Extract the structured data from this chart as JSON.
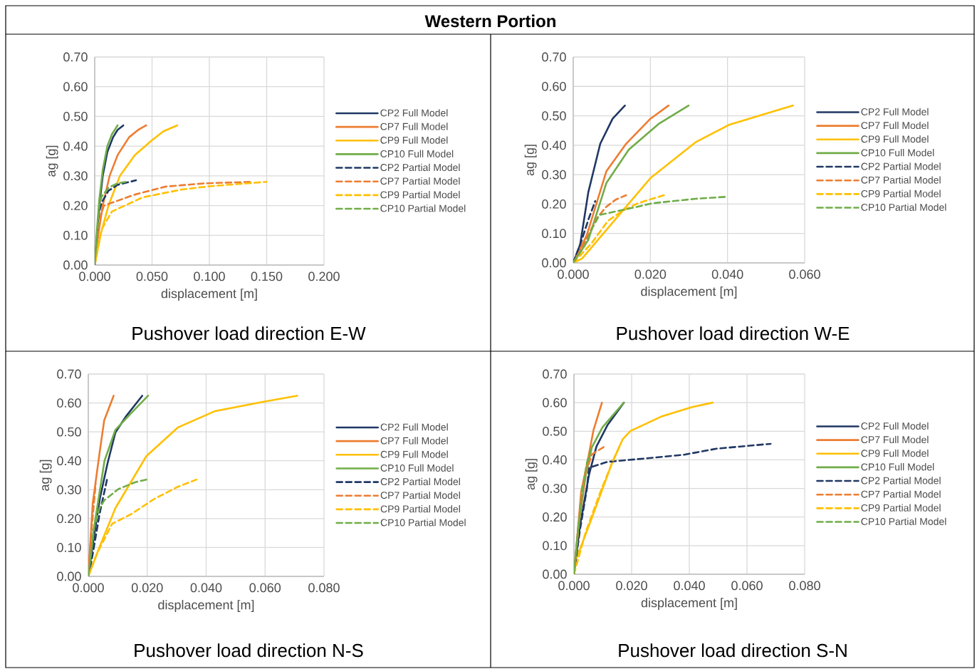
{
  "chart_data": [
    {
      "type": "line",
      "title": "Pushover load direction E-W",
      "xlabel": "displacement [m]",
      "ylabel": "ag [g]",
      "annotations": [
        "Western Portion"
      ],
      "grid": true,
      "legend": "right",
      "xlim": [
        0,
        0.2
      ],
      "ylim": [
        0,
        0.7
      ],
      "xticks": [
        {
          "value": 0,
          "label": "0.000"
        },
        {
          "value": 0.05,
          "label": "0.050"
        },
        {
          "value": 0.1,
          "label": "0.100"
        },
        {
          "value": 0.15,
          "label": "0.150"
        },
        {
          "value": 0.2,
          "label": "0.200"
        }
      ],
      "yticks": [
        {
          "value": 0,
          "label": "0.00"
        },
        {
          "value": 0.1,
          "label": "0.10"
        },
        {
          "value": 0.2,
          "label": "0.20"
        },
        {
          "value": 0.3,
          "label": "0.30"
        },
        {
          "value": 0.4,
          "label": "0.40"
        },
        {
          "value": 0.5,
          "label": "0.50"
        },
        {
          "value": 0.6,
          "label": "0.60"
        },
        {
          "value": 0.7,
          "label": "0.70"
        }
      ],
      "series": [
        {
          "name": "CP2 Full Model",
          "color": "#203864",
          "line_style": "solid",
          "x": [
            0,
            0.002,
            0.004,
            0.007,
            0.011,
            0.016,
            0.02,
            0.025
          ],
          "values": [
            0,
            0.1,
            0.2,
            0.3,
            0.38,
            0.43,
            0.455,
            0.47
          ]
        },
        {
          "name": "CP7 Full Model",
          "color": "#ed7d31",
          "line_style": "solid",
          "x": [
            0,
            0.003,
            0.007,
            0.013,
            0.02,
            0.03,
            0.038,
            0.045
          ],
          "values": [
            0,
            0.1,
            0.2,
            0.3,
            0.37,
            0.43,
            0.455,
            0.47
          ]
        },
        {
          "name": "CP9 Full Model",
          "color": "#ffc000",
          "line_style": "solid",
          "x": [
            0,
            0.005,
            0.012,
            0.022,
            0.035,
            0.05,
            0.06,
            0.072
          ],
          "values": [
            0,
            0.1,
            0.2,
            0.3,
            0.37,
            0.42,
            0.45,
            0.47
          ]
        },
        {
          "name": "CP10 Full Model",
          "color": "#70ad47",
          "line_style": "solid",
          "x": [
            0,
            0.002,
            0.004,
            0.007,
            0.011,
            0.015,
            0.02
          ],
          "values": [
            0,
            0.12,
            0.22,
            0.32,
            0.4,
            0.44,
            0.47
          ]
        },
        {
          "name": "CP2 Partial Model",
          "color": "#203864",
          "line_style": "dashed",
          "x": [
            0,
            0.004,
            0.006,
            0.012,
            0.02,
            0.036
          ],
          "values": [
            0,
            0.18,
            0.21,
            0.25,
            0.27,
            0.285
          ]
        },
        {
          "name": "CP7 Partial Model",
          "color": "#ed7d31",
          "line_style": "dashed",
          "x": [
            0,
            0.004,
            0.008,
            0.035,
            0.062,
            0.096,
            0.137
          ],
          "values": [
            0,
            0.15,
            0.2,
            0.237,
            0.264,
            0.275,
            0.28
          ]
        },
        {
          "name": "CP9 Partial Model",
          "color": "#ffc000",
          "line_style": "dashed",
          "x": [
            0,
            0.006,
            0.015,
            0.042,
            0.076,
            0.1,
            0.15
          ],
          "values": [
            0,
            0.12,
            0.18,
            0.228,
            0.254,
            0.265,
            0.28
          ]
        },
        {
          "name": "CP10 Partial Model",
          "color": "#70ad47",
          "line_style": "dashed",
          "x": [
            0,
            0.004,
            0.006,
            0.012,
            0.02,
            0.027
          ],
          "values": [
            0,
            0.2,
            0.23,
            0.26,
            0.275,
            0.28
          ]
        }
      ]
    },
    {
      "type": "line",
      "title": "Pushover load direction W-E",
      "xlabel": "displacement [m]",
      "ylabel": "ag [g]",
      "grid": true,
      "legend": "right",
      "xlim": [
        0,
        0.06
      ],
      "ylim": [
        0,
        0.7
      ],
      "xticks": [
        {
          "value": 0,
          "label": "0.000"
        },
        {
          "value": 0.02,
          "label": "0.020"
        },
        {
          "value": 0.04,
          "label": "0.040"
        },
        {
          "value": 0.06,
          "label": "0.060"
        }
      ],
      "yticks": [
        {
          "value": 0,
          "label": "0.00"
        },
        {
          "value": 0.1,
          "label": "0.10"
        },
        {
          "value": 0.2,
          "label": "0.20"
        },
        {
          "value": 0.3,
          "label": "0.30"
        },
        {
          "value": 0.4,
          "label": "0.40"
        },
        {
          "value": 0.5,
          "label": "0.50"
        },
        {
          "value": 0.6,
          "label": "0.60"
        },
        {
          "value": 0.7,
          "label": "0.70"
        }
      ],
      "series": [
        {
          "name": "CP2 Full Model",
          "color": "#203864",
          "line_style": "solid",
          "x": [
            0,
            0.0018,
            0.0039,
            0.007,
            0.0102,
            0.0134
          ],
          "values": [
            0,
            0.063,
            0.24,
            0.405,
            0.49,
            0.535
          ]
        },
        {
          "name": "CP7 Full Model",
          "color": "#ed7d31",
          "line_style": "solid",
          "x": [
            0,
            0.0035,
            0.0086,
            0.0137,
            0.02,
            0.0247
          ],
          "values": [
            0,
            0.094,
            0.312,
            0.405,
            0.49,
            0.535
          ]
        },
        {
          "name": "CP9 Full Model",
          "color": "#ffc000",
          "line_style": "solid",
          "x": [
            0,
            0.0023,
            0.0106,
            0.02,
            0.0317,
            0.0405,
            0.057
          ],
          "values": [
            0,
            0.015,
            0.143,
            0.288,
            0.41,
            0.47,
            0.535
          ]
        },
        {
          "name": "CP10 Full Model",
          "color": "#70ad47",
          "line_style": "solid",
          "x": [
            0,
            0.0039,
            0.0086,
            0.0144,
            0.0223,
            0.0299
          ],
          "values": [
            0,
            0.078,
            0.272,
            0.385,
            0.474,
            0.535
          ]
        },
        {
          "name": "CP2 Partial Model",
          "color": "#203864",
          "line_style": "dashed",
          "x": [
            0,
            0.002,
            0.004,
            0.0057
          ],
          "values": [
            0,
            0.07,
            0.15,
            0.21
          ]
        },
        {
          "name": "CP7 Partial Model",
          "color": "#ed7d31",
          "line_style": "dashed",
          "x": [
            0,
            0.003,
            0.006,
            0.0085,
            0.011,
            0.0137
          ],
          "values": [
            0,
            0.07,
            0.15,
            0.19,
            0.215,
            0.23
          ]
        },
        {
          "name": "CP9 Partial Model",
          "color": "#ffc000",
          "line_style": "dashed",
          "x": [
            0,
            0.0047,
            0.009,
            0.0125,
            0.0168,
            0.0235
          ],
          "values": [
            0,
            0.066,
            0.143,
            0.175,
            0.203,
            0.23
          ]
        },
        {
          "name": "CP10 Partial Model",
          "color": "#70ad47",
          "line_style": "dashed",
          "x": [
            0,
            0.003,
            0.005,
            0.0068,
            0.0125,
            0.0207,
            0.0317,
            0.04
          ],
          "values": [
            0,
            0.06,
            0.12,
            0.163,
            0.179,
            0.203,
            0.218,
            0.225
          ]
        }
      ]
    },
    {
      "type": "line",
      "title": "Pushover load direction N-S",
      "xlabel": "displacement [m]",
      "ylabel": "ag [g]",
      "grid": true,
      "legend": "right",
      "xlim": [
        0,
        0.08
      ],
      "ylim": [
        0,
        0.7
      ],
      "xticks": [
        {
          "value": 0,
          "label": "0.000"
        },
        {
          "value": 0.02,
          "label": "0.020"
        },
        {
          "value": 0.04,
          "label": "0.040"
        },
        {
          "value": 0.06,
          "label": "0.060"
        },
        {
          "value": 0.08,
          "label": "0.080"
        }
      ],
      "yticks": [
        {
          "value": 0,
          "label": "0.00"
        },
        {
          "value": 0.1,
          "label": "0.10"
        },
        {
          "value": 0.2,
          "label": "0.20"
        },
        {
          "value": 0.3,
          "label": "0.30"
        },
        {
          "value": 0.4,
          "label": "0.40"
        },
        {
          "value": 0.5,
          "label": "0.50"
        },
        {
          "value": 0.6,
          "label": "0.60"
        },
        {
          "value": 0.7,
          "label": "0.70"
        }
      ],
      "series": [
        {
          "name": "CP2 Full Model",
          "color": "#203864",
          "line_style": "solid",
          "x": [
            0,
            0.0012,
            0.0039,
            0.0065,
            0.0092,
            0.0129,
            0.0183
          ],
          "values": [
            0,
            0.088,
            0.268,
            0.39,
            0.498,
            0.555,
            0.625
          ]
        },
        {
          "name": "CP7 Full Model",
          "color": "#ed7d31",
          "line_style": "solid",
          "x": [
            0,
            0.0015,
            0.0039,
            0.0054,
            0.0086
          ],
          "values": [
            0,
            0.252,
            0.433,
            0.54,
            0.625
          ]
        },
        {
          "name": "CP9 Full Model",
          "color": "#ffc000",
          "line_style": "solid",
          "x": [
            0,
            0.0039,
            0.0092,
            0.0197,
            0.0304,
            0.0431,
            0.06,
            0.0709
          ],
          "values": [
            0,
            0.104,
            0.236,
            0.416,
            0.515,
            0.572,
            0.605,
            0.625
          ]
        },
        {
          "name": "CP10 Full Model",
          "color": "#70ad47",
          "line_style": "solid",
          "x": [
            0,
            0.0017,
            0.0055,
            0.0092,
            0.0145,
            0.0203
          ],
          "values": [
            0,
            0.153,
            0.4,
            0.507,
            0.564,
            0.625
          ]
        },
        {
          "name": "CP2 Partial Model",
          "color": "#203864",
          "line_style": "dashed",
          "x": [
            0,
            0.0012,
            0.0039,
            0.0065
          ],
          "values": [
            0,
            0.06,
            0.22,
            0.342
          ]
        },
        {
          "name": "CP7 Partial Model",
          "color": "#ed7d31",
          "line_style": "dashed",
          "x": [
            0,
            0.001,
            0.0025
          ],
          "values": [
            0,
            0.15,
            0.32
          ]
        },
        {
          "name": "CP9 Partial Model",
          "color": "#ffc000",
          "line_style": "dashed",
          "x": [
            0,
            0.003,
            0.0081,
            0.0145,
            0.0224,
            0.0304,
            0.0367
          ],
          "values": [
            0,
            0.08,
            0.182,
            0.215,
            0.268,
            0.31,
            0.335
          ]
        },
        {
          "name": "CP10 Partial Model",
          "color": "#70ad47",
          "line_style": "dashed",
          "x": [
            0,
            0.002,
            0.0038,
            0.0055,
            0.0102,
            0.016,
            0.0206
          ],
          "values": [
            0,
            0.17,
            0.236,
            0.264,
            0.302,
            0.326,
            0.337
          ]
        }
      ]
    },
    {
      "type": "line",
      "title": "Pushover load direction S-N",
      "xlabel": "displacement [m]",
      "ylabel": "ag [g]",
      "grid": true,
      "legend": "right",
      "xlim": [
        0,
        0.08
      ],
      "ylim": [
        0,
        0.7
      ],
      "xticks": [
        {
          "value": 0,
          "label": "0.000"
        },
        {
          "value": 0.02,
          "label": "0.020"
        },
        {
          "value": 0.04,
          "label": "0.040"
        },
        {
          "value": 0.06,
          "label": "0.060"
        },
        {
          "value": 0.08,
          "label": "0.080"
        }
      ],
      "yticks": [
        {
          "value": 0,
          "label": "0.00"
        },
        {
          "value": 0.1,
          "label": "0.10"
        },
        {
          "value": 0.2,
          "label": "0.20"
        },
        {
          "value": 0.3,
          "label": "0.30"
        },
        {
          "value": 0.4,
          "label": "0.40"
        },
        {
          "value": 0.5,
          "label": "0.50"
        },
        {
          "value": 0.6,
          "label": "0.60"
        },
        {
          "value": 0.7,
          "label": "0.70"
        }
      ],
      "series": [
        {
          "name": "CP2 Full Model",
          "color": "#203864",
          "line_style": "solid",
          "x": [
            0,
            0.002,
            0.0052,
            0.0078,
            0.0116,
            0.0173
          ],
          "values": [
            0,
            0.165,
            0.347,
            0.447,
            0.521,
            0.6
          ]
        },
        {
          "name": "CP7 Full Model",
          "color": "#ed7d31",
          "line_style": "solid",
          "x": [
            0,
            0.0025,
            0.0046,
            0.0068,
            0.0097
          ],
          "values": [
            0,
            0.289,
            0.389,
            0.505,
            0.6
          ]
        },
        {
          "name": "CP9 Full Model",
          "color": "#ffc000",
          "line_style": "solid",
          "x": [
            0,
            0.0006,
            0.0062,
            0.0132,
            0.0169,
            0.0196,
            0.0302,
            0.0408,
            0.0481
          ],
          "values": [
            0,
            0.048,
            0.197,
            0.389,
            0.472,
            0.501,
            0.551,
            0.584,
            0.6
          ]
        },
        {
          "name": "CP10 Full Model",
          "color": "#70ad47",
          "line_style": "solid",
          "x": [
            0,
            0.0015,
            0.0041,
            0.0062,
            0.0099,
            0.0173
          ],
          "values": [
            0,
            0.165,
            0.347,
            0.444,
            0.514,
            0.6
          ]
        },
        {
          "name": "CP2 Partial Model",
          "color": "#203864",
          "line_style": "dashed",
          "x": [
            0,
            0.002,
            0.0045,
            0.0052,
            0.0116,
            0.0249,
            0.0382,
            0.0494,
            0.0682
          ],
          "values": [
            0,
            0.15,
            0.3,
            0.372,
            0.393,
            0.405,
            0.418,
            0.439,
            0.456
          ]
        },
        {
          "name": "CP7 Partial Model",
          "color": "#ed7d31",
          "line_style": "dashed",
          "x": [
            0,
            0.002,
            0.004,
            0.0062,
            0.0113
          ],
          "values": [
            0,
            0.2,
            0.35,
            0.419,
            0.451
          ]
        },
        {
          "name": "CP9 Partial Model",
          "color": "#ffc000",
          "line_style": "dashed",
          "x": [
            0,
            0.0041,
            0.0089,
            0.0132,
            0.0158
          ],
          "values": [
            0,
            0.148,
            0.281,
            0.389,
            0.447
          ]
        },
        {
          "name": "CP10 Partial Model",
          "color": "#70ad47",
          "line_style": "dashed",
          "x": [
            0,
            0.0015,
            0.003,
            0.0045,
            0.006
          ],
          "values": [
            0,
            0.16,
            0.3,
            0.39,
            0.439
          ]
        }
      ]
    }
  ]
}
